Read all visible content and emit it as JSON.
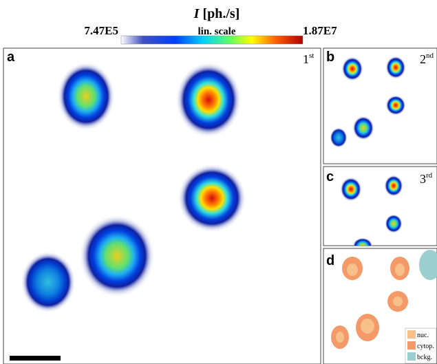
{
  "colorbar": {
    "symbol": "I",
    "unit": "[ph./s]",
    "min_label": "7.47E5",
    "scale_label": "lin. scale",
    "max_label": "1.87E7"
  },
  "panels": [
    {
      "label": "a",
      "frame": {
        "number": "1",
        "suffix": "st"
      }
    },
    {
      "label": "b",
      "frame": {
        "number": "2",
        "suffix": "nd"
      }
    },
    {
      "label": "c",
      "frame": {
        "number": "3",
        "suffix": "rd"
      }
    },
    {
      "label": "d",
      "legend": [
        "nuc.",
        "cytop.",
        "bckg."
      ]
    }
  ]
}
